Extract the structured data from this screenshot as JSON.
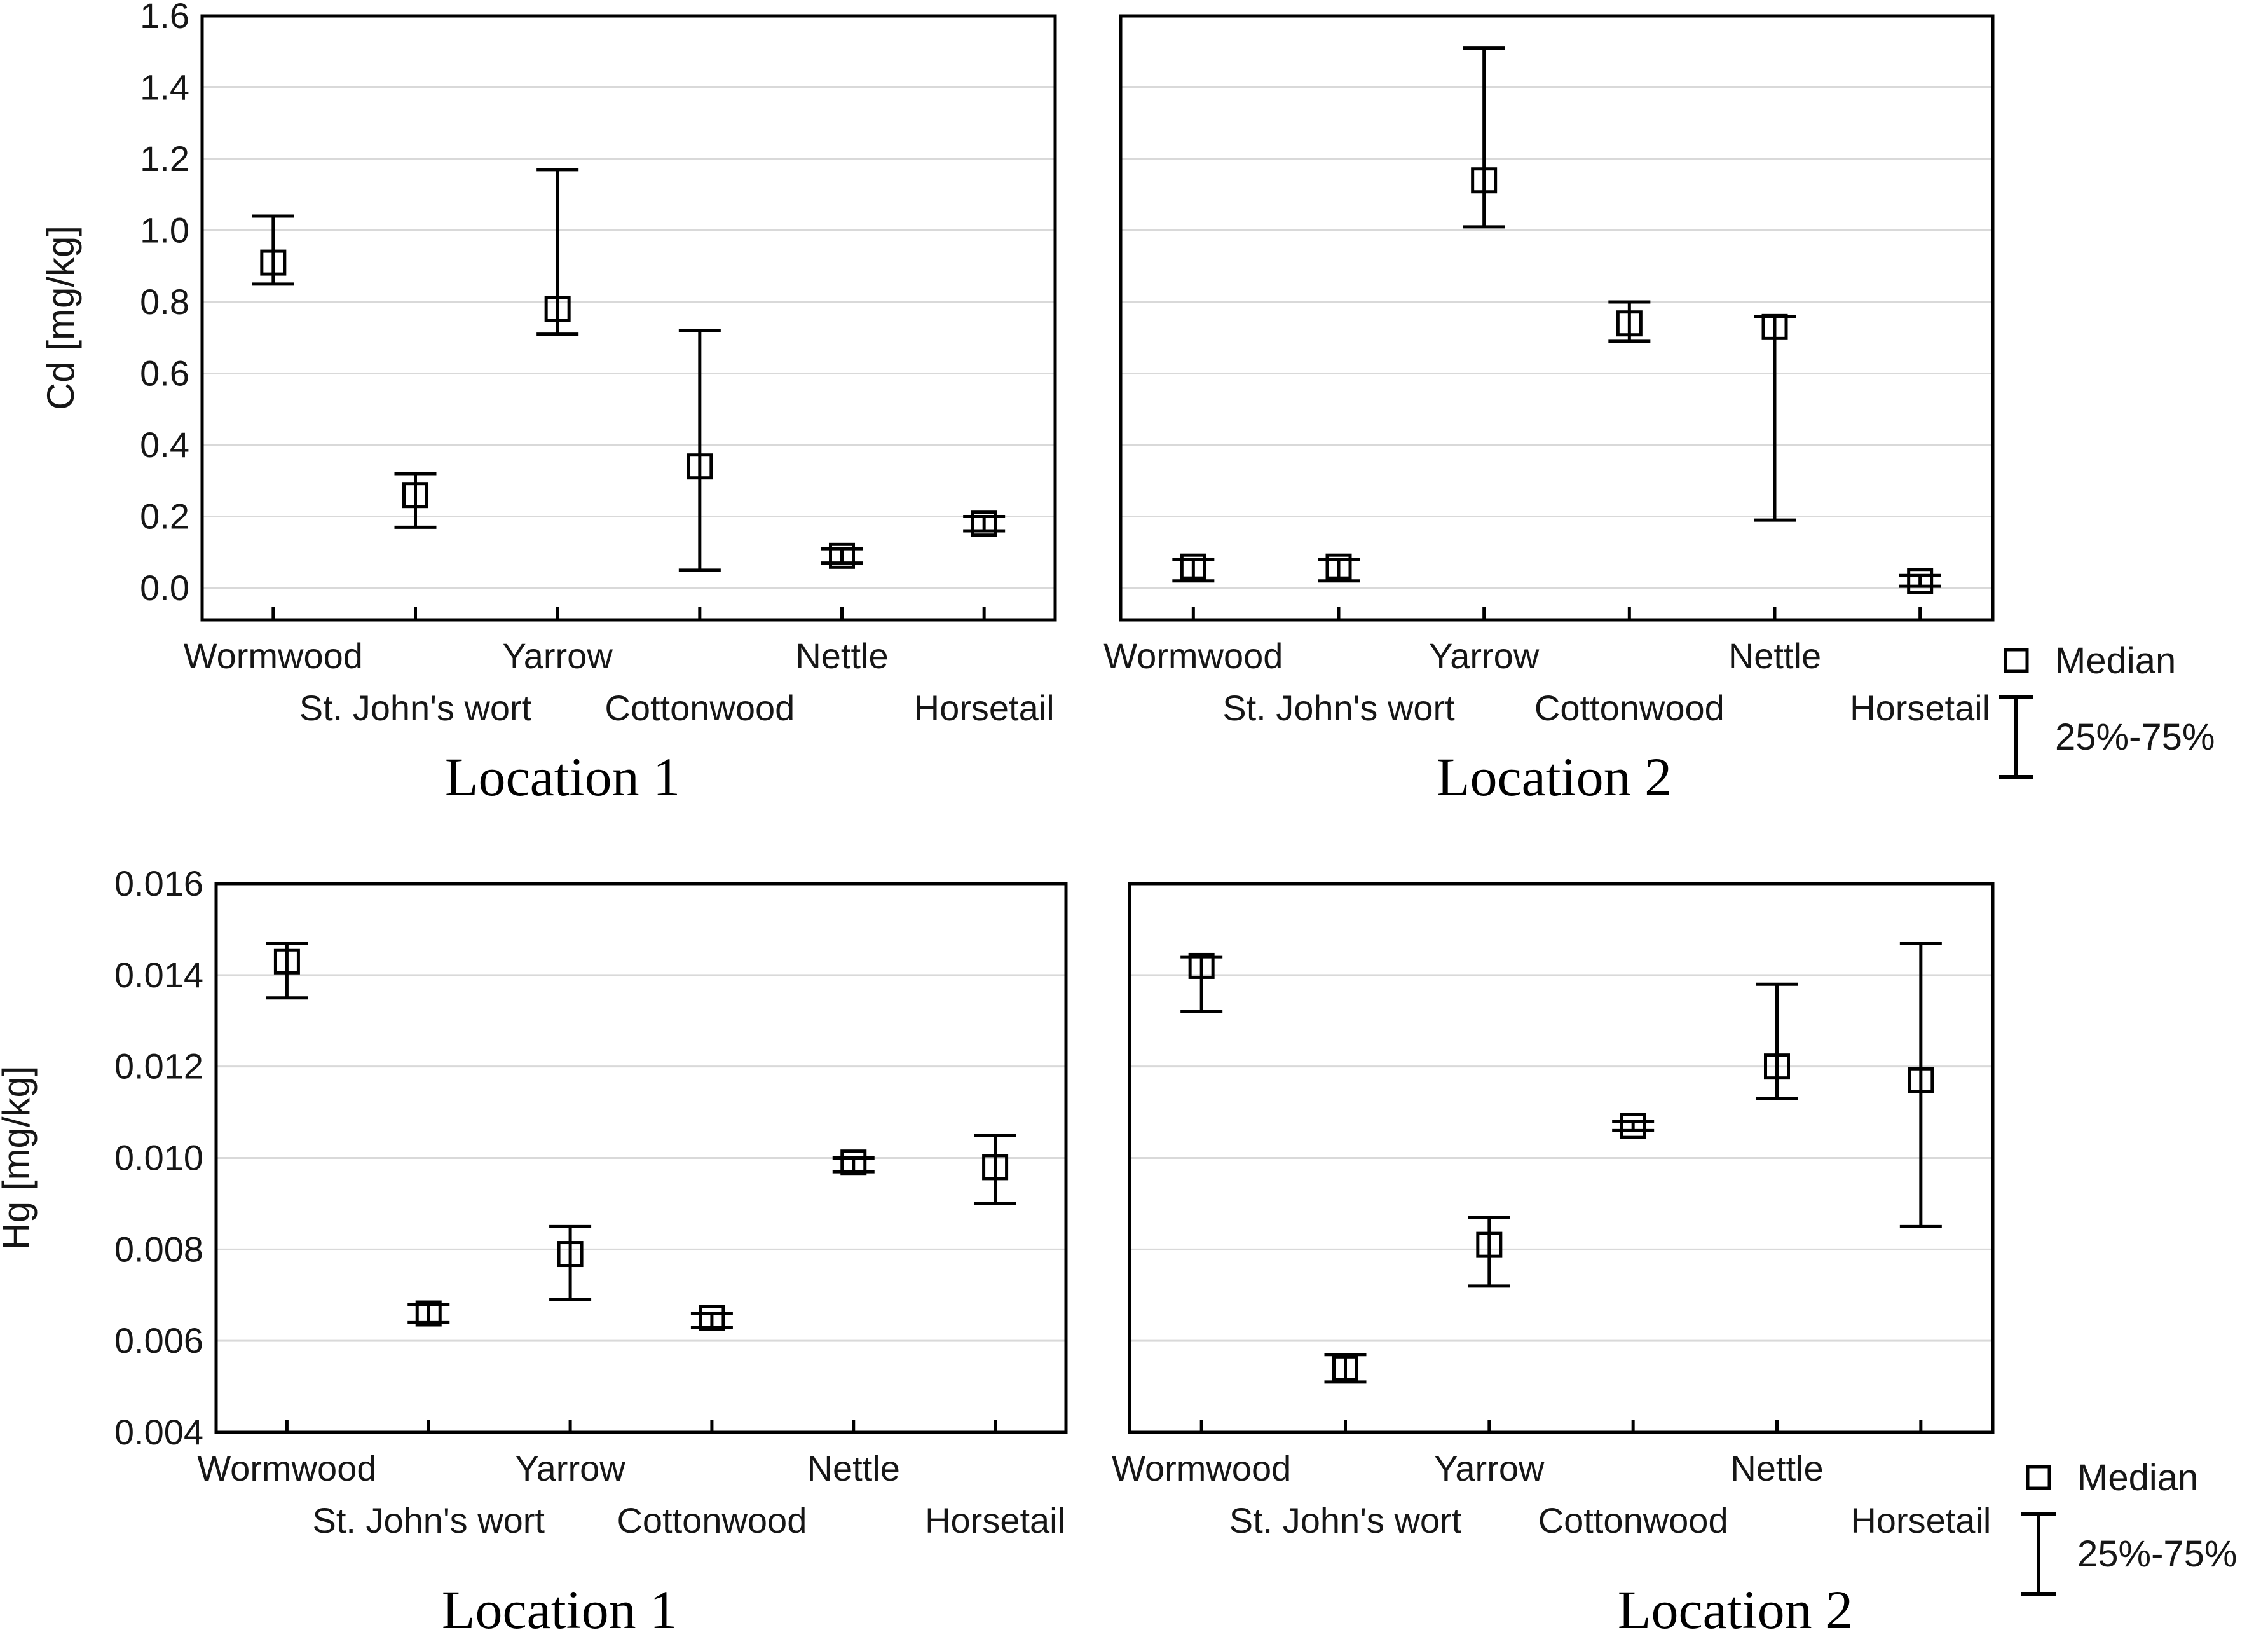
{
  "figure": {
    "background": "#ffffff",
    "stroke_color": "#000000",
    "gridline_color": "#d9d9d9"
  },
  "legend": {
    "median_label": "Median",
    "range_label": "25%-75%",
    "median_icon": "open-square-marker",
    "range_icon": "error-bar-marker"
  },
  "chart_data": [
    {
      "type": "scatter",
      "marker": "open-square-with-iqr-whisker",
      "location": "Location 1",
      "element": "Cd",
      "ylabel": "Cd [mg/kg]",
      "xlabel": "",
      "ylim": [
        -0.089,
        1.6
      ],
      "yticks": [
        0.0,
        0.2,
        0.4,
        0.6,
        0.8,
        1.0,
        1.2,
        1.4,
        1.6
      ],
      "ytick_labels": [
        "0.0",
        "0.2",
        "0.4",
        "0.6",
        "0.8",
        "1.0",
        "1.2",
        "1.4",
        "1.6"
      ],
      "grid": "horizontal",
      "categories": [
        "Wormwood",
        "St. John's wort",
        "Yarrow",
        "Cottonwood",
        "Nettle",
        "Horsetail"
      ],
      "series": [
        {
          "category": "Wormwood",
          "median": 0.91,
          "q25": 0.85,
          "q75": 1.04
        },
        {
          "category": "St. John's wort",
          "median": 0.26,
          "q25": 0.17,
          "q75": 0.32
        },
        {
          "category": "Yarrow",
          "median": 0.78,
          "q25": 0.71,
          "q75": 1.17
        },
        {
          "category": "Cottonwood",
          "median": 0.34,
          "q25": 0.05,
          "q75": 0.72
        },
        {
          "category": "Nettle",
          "median": 0.09,
          "q25": 0.07,
          "q75": 0.11
        },
        {
          "category": "Horsetail",
          "median": 0.18,
          "q25": 0.16,
          "q75": 0.2
        }
      ]
    },
    {
      "type": "scatter",
      "marker": "open-square-with-iqr-whisker",
      "location": "Location 2",
      "element": "Cd",
      "ylabel": "",
      "xlabel": "",
      "ylim": [
        -0.089,
        1.6
      ],
      "yticks": [
        0.0,
        0.2,
        0.4,
        0.6,
        0.8,
        1.0,
        1.2,
        1.4,
        1.6
      ],
      "ytick_labels": [],
      "grid": "horizontal",
      "categories": [
        "Wormwood",
        "St. John's wort",
        "Yarrow",
        "Cottonwood",
        "Nettle",
        "Horsetail"
      ],
      "series": [
        {
          "category": "Wormwood",
          "median": 0.06,
          "q25": 0.02,
          "q75": 0.08
        },
        {
          "category": "St. John's wort",
          "median": 0.06,
          "q25": 0.02,
          "q75": 0.08
        },
        {
          "category": "Yarrow",
          "median": 1.14,
          "q25": 1.01,
          "q75": 1.51
        },
        {
          "category": "Cottonwood",
          "median": 0.74,
          "q25": 0.69,
          "q75": 0.8
        },
        {
          "category": "Nettle",
          "median": 0.73,
          "q25": 0.19,
          "q75": 0.76
        },
        {
          "category": "Horsetail",
          "median": 0.02,
          "q25": 0.005,
          "q75": 0.035
        }
      ]
    },
    {
      "type": "scatter",
      "marker": "open-square-with-iqr-whisker",
      "location": "Location 1",
      "element": "Hg",
      "ylabel": "Hg [mg/kg]",
      "xlabel": "",
      "ylim": [
        0.004,
        0.016
      ],
      "yticks": [
        0.004,
        0.006,
        0.008,
        0.01,
        0.012,
        0.014,
        0.016
      ],
      "ytick_labels": [
        "0.004",
        "0.006",
        "0.008",
        "0.010",
        "0.012",
        "0.014",
        "0.016"
      ],
      "grid": "horizontal",
      "categories": [
        "Wormwood",
        "St. John's wort",
        "Yarrow",
        "Cottonwood",
        "Nettle",
        "Horsetail"
      ],
      "series": [
        {
          "category": "Wormwood",
          "median": 0.0143,
          "q25": 0.0135,
          "q75": 0.0147
        },
        {
          "category": "St. John's wort",
          "median": 0.0066,
          "q25": 0.0064,
          "q75": 0.0068
        },
        {
          "category": "Yarrow",
          "median": 0.0079,
          "q25": 0.0069,
          "q75": 0.0085
        },
        {
          "category": "Cottonwood",
          "median": 0.0065,
          "q25": 0.0063,
          "q75": 0.0066
        },
        {
          "category": "Nettle",
          "median": 0.0099,
          "q25": 0.0097,
          "q75": 0.01
        },
        {
          "category": "Horsetail",
          "median": 0.0098,
          "q25": 0.009,
          "q75": 0.0105
        }
      ]
    },
    {
      "type": "scatter",
      "marker": "open-square-with-iqr-whisker",
      "location": "Location 2",
      "element": "Hg",
      "ylabel": "",
      "xlabel": "",
      "ylim": [
        0.004,
        0.016
      ],
      "yticks": [
        0.004,
        0.006,
        0.008,
        0.01,
        0.012,
        0.014,
        0.016
      ],
      "ytick_labels": [],
      "grid": "horizontal",
      "categories": [
        "Wormwood",
        "St. John's wort",
        "Yarrow",
        "Cottonwood",
        "Nettle",
        "Horsetail"
      ],
      "series": [
        {
          "category": "Wormwood",
          "median": 0.0142,
          "q25": 0.0132,
          "q75": 0.0144
        },
        {
          "category": "St. John's wort",
          "median": 0.0054,
          "q25": 0.0051,
          "q75": 0.0057
        },
        {
          "category": "Yarrow",
          "median": 0.0081,
          "q25": 0.0072,
          "q75": 0.0087
        },
        {
          "category": "Cottonwood",
          "median": 0.0107,
          "q25": 0.0106,
          "q75": 0.0108
        },
        {
          "category": "Nettle",
          "median": 0.012,
          "q25": 0.0113,
          "q75": 0.0138
        },
        {
          "category": "Horsetail",
          "median": 0.0117,
          "q25": 0.0085,
          "q75": 0.0147
        }
      ]
    }
  ]
}
